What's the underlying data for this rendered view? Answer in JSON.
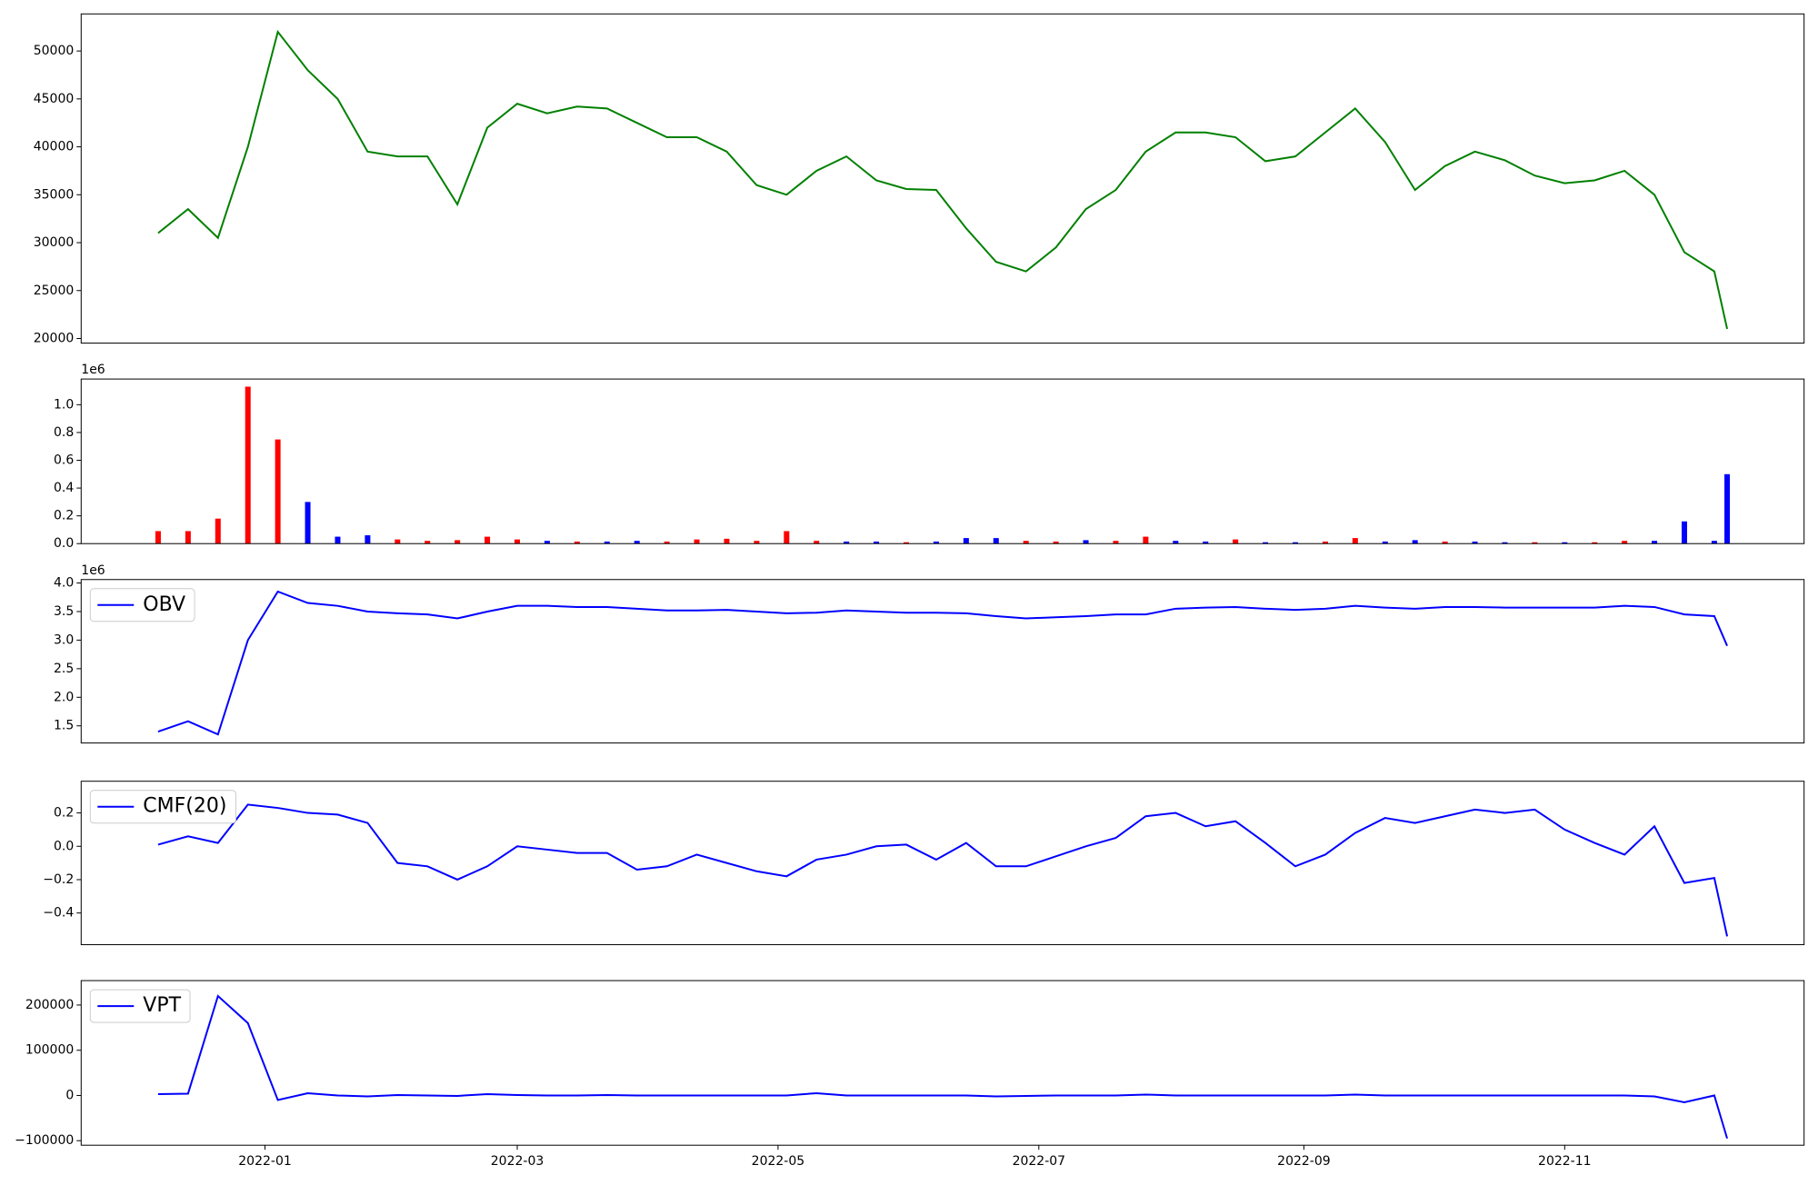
{
  "chart_data": [
    {
      "type": "line",
      "xlim": [
        "2021-11-19",
        "2022-12-27"
      ],
      "x": [
        "2021-12-07",
        "2021-12-14",
        "2021-12-21",
        "2021-12-28",
        "2022-01-04",
        "2022-01-11",
        "2022-01-18",
        "2022-01-25",
        "2022-02-01",
        "2022-02-08",
        "2022-02-15",
        "2022-02-22",
        "2022-03-01",
        "2022-03-08",
        "2022-03-15",
        "2022-03-22",
        "2022-03-29",
        "2022-04-05",
        "2022-04-12",
        "2022-04-19",
        "2022-04-26",
        "2022-05-03",
        "2022-05-10",
        "2022-05-17",
        "2022-05-24",
        "2022-05-31",
        "2022-06-07",
        "2022-06-14",
        "2022-06-21",
        "2022-06-28",
        "2022-07-05",
        "2022-07-12",
        "2022-07-19",
        "2022-07-26",
        "2022-08-02",
        "2022-08-09",
        "2022-08-16",
        "2022-08-23",
        "2022-08-30",
        "2022-09-06",
        "2022-09-13",
        "2022-09-20",
        "2022-09-27",
        "2022-10-04",
        "2022-10-11",
        "2022-10-18",
        "2022-10-25",
        "2022-11-01",
        "2022-11-08",
        "2022-11-15",
        "2022-11-22",
        "2022-11-29",
        "2022-12-06",
        "2022-12-09"
      ],
      "series": [
        {
          "color": "#008000",
          "values": [
            31000,
            33500,
            30500,
            40000,
            52000,
            48000,
            45000,
            39500,
            39000,
            39000,
            34000,
            42000,
            44500,
            43500,
            44200,
            44000,
            42500,
            41000,
            41000,
            39500,
            36000,
            35000,
            37500,
            39000,
            36500,
            35600,
            35500,
            31500,
            28000,
            27000,
            29500,
            33500,
            35500,
            39500,
            41500,
            41500,
            41000,
            38500,
            39000,
            41500,
            44000,
            40500,
            35500,
            38000,
            39500,
            38600,
            37000,
            36200,
            36500,
            37500,
            35000,
            29000,
            27000,
            21000
          ]
        }
      ],
      "ylim": [
        19520,
        53870
      ],
      "yticks": [
        20000,
        25000,
        30000,
        35000,
        40000,
        45000,
        50000
      ]
    },
    {
      "type": "bar",
      "xlim": [
        "2021-11-19",
        "2022-12-27"
      ],
      "offset_label": "1e6",
      "x": [
        "2021-12-07",
        "2021-12-14",
        "2021-12-21",
        "2021-12-28",
        "2022-01-04",
        "2022-01-11",
        "2022-01-18",
        "2022-01-25",
        "2022-02-01",
        "2022-02-08",
        "2022-02-15",
        "2022-02-22",
        "2022-03-01",
        "2022-03-08",
        "2022-03-15",
        "2022-03-22",
        "2022-03-29",
        "2022-04-05",
        "2022-04-12",
        "2022-04-19",
        "2022-04-26",
        "2022-05-03",
        "2022-05-10",
        "2022-05-17",
        "2022-05-24",
        "2022-05-31",
        "2022-06-07",
        "2022-06-14",
        "2022-06-21",
        "2022-06-28",
        "2022-07-05",
        "2022-07-12",
        "2022-07-19",
        "2022-07-26",
        "2022-08-02",
        "2022-08-09",
        "2022-08-16",
        "2022-08-23",
        "2022-08-30",
        "2022-09-06",
        "2022-09-13",
        "2022-09-20",
        "2022-09-27",
        "2022-10-04",
        "2022-10-11",
        "2022-10-18",
        "2022-10-25",
        "2022-11-01",
        "2022-11-08",
        "2022-11-15",
        "2022-11-22",
        "2022-11-29",
        "2022-12-06",
        "2022-12-09"
      ],
      "values": [
        90000,
        90000,
        180000,
        1130000,
        750000,
        300000,
        50000,
        60000,
        30000,
        20000,
        25000,
        50000,
        30000,
        20000,
        15000,
        15000,
        20000,
        15000,
        30000,
        35000,
        20000,
        90000,
        20000,
        15000,
        15000,
        10000,
        15000,
        40000,
        40000,
        20000,
        15000,
        25000,
        20000,
        50000,
        20000,
        15000,
        30000,
        10000,
        10000,
        15000,
        40000,
        15000,
        25000,
        15000,
        15000,
        10000,
        10000,
        10000,
        10000,
        20000,
        20000,
        160000,
        20000,
        500000
      ],
      "colors": [
        "red",
        "red",
        "red",
        "red",
        "red",
        "blue",
        "blue",
        "blue",
        "red",
        "red",
        "red",
        "red",
        "red",
        "blue",
        "red",
        "blue",
        "blue",
        "red",
        "red",
        "red",
        "red",
        "red",
        "red",
        "blue",
        "blue",
        "red",
        "blue",
        "blue",
        "blue",
        "red",
        "red",
        "blue",
        "red",
        "red",
        "blue",
        "blue",
        "red",
        "blue",
        "blue",
        "red",
        "red",
        "blue",
        "blue",
        "red",
        "blue",
        "blue",
        "red",
        "blue",
        "red",
        "red",
        "blue",
        "blue",
        "blue",
        "blue"
      ],
      "ylim": [
        0,
        1185000
      ],
      "yticks": [
        {
          "value": 0,
          "label": "0.0"
        },
        {
          "value": 200000,
          "label": "0.2"
        },
        {
          "value": 400000,
          "label": "0.4"
        },
        {
          "value": 600000,
          "label": "0.6"
        },
        {
          "value": 800000,
          "label": "0.8"
        },
        {
          "value": 1000000,
          "label": "1.0"
        }
      ]
    },
    {
      "type": "line",
      "xlim": [
        "2021-11-19",
        "2022-12-27"
      ],
      "offset_label": "1e6",
      "legend": "upper left",
      "x": [
        "2021-12-07",
        "2021-12-14",
        "2021-12-21",
        "2021-12-28",
        "2022-01-04",
        "2022-01-11",
        "2022-01-18",
        "2022-01-25",
        "2022-02-01",
        "2022-02-08",
        "2022-02-15",
        "2022-02-22",
        "2022-03-01",
        "2022-03-08",
        "2022-03-15",
        "2022-03-22",
        "2022-03-29",
        "2022-04-05",
        "2022-04-12",
        "2022-04-19",
        "2022-04-26",
        "2022-05-03",
        "2022-05-10",
        "2022-05-17",
        "2022-05-24",
        "2022-05-31",
        "2022-06-07",
        "2022-06-14",
        "2022-06-21",
        "2022-06-28",
        "2022-07-05",
        "2022-07-12",
        "2022-07-19",
        "2022-07-26",
        "2022-08-02",
        "2022-08-09",
        "2022-08-16",
        "2022-08-23",
        "2022-08-30",
        "2022-09-06",
        "2022-09-13",
        "2022-09-20",
        "2022-09-27",
        "2022-10-04",
        "2022-10-11",
        "2022-10-18",
        "2022-10-25",
        "2022-11-01",
        "2022-11-08",
        "2022-11-15",
        "2022-11-22",
        "2022-11-29",
        "2022-12-06",
        "2022-12-09"
      ],
      "series": [
        {
          "name": "OBV",
          "color": "#0000ff",
          "values": [
            1400000,
            1580000,
            1350000,
            3000000,
            3850000,
            3650000,
            3600000,
            3500000,
            3470000,
            3450000,
            3380000,
            3500000,
            3600000,
            3600000,
            3580000,
            3580000,
            3550000,
            3520000,
            3520000,
            3530000,
            3500000,
            3470000,
            3480000,
            3520000,
            3500000,
            3480000,
            3480000,
            3470000,
            3420000,
            3380000,
            3400000,
            3420000,
            3450000,
            3450000,
            3550000,
            3570000,
            3580000,
            3550000,
            3530000,
            3550000,
            3600000,
            3570000,
            3550000,
            3580000,
            3580000,
            3570000,
            3570000,
            3570000,
            3570000,
            3600000,
            3580000,
            3450000,
            3420000,
            2900000
          ]
        }
      ],
      "ylim": [
        1200000,
        4060000
      ],
      "yticks": [
        {
          "value": 1500000,
          "label": "1.5"
        },
        {
          "value": 2000000,
          "label": "2.0"
        },
        {
          "value": 2500000,
          "label": "2.5"
        },
        {
          "value": 3000000,
          "label": "3.0"
        },
        {
          "value": 3500000,
          "label": "3.5"
        },
        {
          "value": 4000000,
          "label": "4.0"
        }
      ]
    },
    {
      "type": "line",
      "xlim": [
        "2021-11-19",
        "2022-12-27"
      ],
      "legend": "upper left",
      "x": [
        "2021-12-07",
        "2021-12-14",
        "2021-12-21",
        "2021-12-28",
        "2022-01-04",
        "2022-01-11",
        "2022-01-18",
        "2022-01-25",
        "2022-02-01",
        "2022-02-08",
        "2022-02-15",
        "2022-02-22",
        "2022-03-01",
        "2022-03-08",
        "2022-03-15",
        "2022-03-22",
        "2022-03-29",
        "2022-04-05",
        "2022-04-12",
        "2022-04-19",
        "2022-04-26",
        "2022-05-03",
        "2022-05-10",
        "2022-05-17",
        "2022-05-24",
        "2022-05-31",
        "2022-06-07",
        "2022-06-14",
        "2022-06-21",
        "2022-06-28",
        "2022-07-05",
        "2022-07-12",
        "2022-07-19",
        "2022-07-26",
        "2022-08-02",
        "2022-08-09",
        "2022-08-16",
        "2022-08-23",
        "2022-08-30",
        "2022-09-06",
        "2022-09-13",
        "2022-09-20",
        "2022-09-27",
        "2022-10-04",
        "2022-10-11",
        "2022-10-18",
        "2022-10-25",
        "2022-11-01",
        "2022-11-08",
        "2022-11-15",
        "2022-11-22",
        "2022-11-29",
        "2022-12-06",
        "2022-12-09"
      ],
      "series": [
        {
          "name": "CMF(20)",
          "color": "#0000ff",
          "values": [
            0.01,
            0.06,
            0.02,
            0.25,
            0.23,
            0.2,
            0.19,
            0.14,
            -0.1,
            -0.12,
            -0.2,
            -0.12,
            0.0,
            -0.02,
            -0.04,
            -0.04,
            -0.14,
            -0.12,
            -0.05,
            -0.1,
            -0.15,
            -0.18,
            -0.08,
            -0.05,
            0.0,
            0.01,
            -0.08,
            0.02,
            -0.12,
            -0.12,
            -0.06,
            0.0,
            0.05,
            0.18,
            0.2,
            0.12,
            0.15,
            0.02,
            -0.12,
            -0.05,
            0.08,
            0.17,
            0.14,
            0.18,
            0.22,
            0.2,
            0.22,
            0.1,
            0.02,
            -0.05,
            0.12,
            -0.22,
            -0.19,
            -0.54
          ]
        }
      ],
      "ylim": [
        -0.59,
        0.39
      ],
      "yticks": [
        {
          "value": -0.4,
          "label": "−0.4"
        },
        {
          "value": -0.2,
          "label": "−0.2"
        },
        {
          "value": 0,
          "label": "0.0"
        },
        0.2
      ]
    },
    {
      "type": "line",
      "xlim": [
        "2021-11-19",
        "2022-12-27"
      ],
      "legend": "upper left",
      "x": [
        "2021-12-07",
        "2021-12-14",
        "2021-12-21",
        "2021-12-28",
        "2022-01-04",
        "2022-01-11",
        "2022-01-18",
        "2022-01-25",
        "2022-02-01",
        "2022-02-08",
        "2022-02-15",
        "2022-02-22",
        "2022-03-01",
        "2022-03-08",
        "2022-03-15",
        "2022-03-22",
        "2022-03-29",
        "2022-04-05",
        "2022-04-12",
        "2022-04-19",
        "2022-04-26",
        "2022-05-03",
        "2022-05-10",
        "2022-05-17",
        "2022-05-24",
        "2022-05-31",
        "2022-06-07",
        "2022-06-14",
        "2022-06-21",
        "2022-06-28",
        "2022-07-05",
        "2022-07-12",
        "2022-07-19",
        "2022-07-26",
        "2022-08-02",
        "2022-08-09",
        "2022-08-16",
        "2022-08-23",
        "2022-08-30",
        "2022-09-06",
        "2022-09-13",
        "2022-09-20",
        "2022-09-27",
        "2022-10-04",
        "2022-10-11",
        "2022-10-18",
        "2022-10-25",
        "2022-11-01",
        "2022-11-08",
        "2022-11-15",
        "2022-11-22",
        "2022-11-29",
        "2022-12-06",
        "2022-12-09"
      ],
      "series": [
        {
          "name": "VPT",
          "color": "#0000ff",
          "values": [
            3000,
            4000,
            220000,
            160000,
            -10000,
            5000,
            0,
            -2000,
            1000,
            0,
            -1000,
            3000,
            1000,
            0,
            0,
            1000,
            0,
            0,
            0,
            0,
            0,
            0,
            5000,
            0,
            0,
            0,
            0,
            0,
            -2000,
            -1000,
            0,
            0,
            0,
            2000,
            0,
            0,
            0,
            0,
            0,
            0,
            2000,
            0,
            0,
            0,
            0,
            0,
            0,
            0,
            0,
            0,
            -2000,
            -15000,
            0,
            -95000
          ]
        }
      ],
      "ylim": [
        -110000,
        254000
      ],
      "yticks": [
        {
          "value": -100000,
          "label": "−100000"
        },
        0,
        100000,
        200000
      ],
      "xticks": [
        {
          "value": "2022-01-01",
          "label": "2022-01"
        },
        {
          "value": "2022-03-01",
          "label": "2022-03"
        },
        {
          "value": "2022-05-01",
          "label": "2022-05"
        },
        {
          "value": "2022-07-01",
          "label": "2022-07"
        },
        {
          "value": "2022-09-01",
          "label": "2022-09"
        },
        {
          "value": "2022-11-01",
          "label": "2022-11"
        }
      ]
    }
  ]
}
